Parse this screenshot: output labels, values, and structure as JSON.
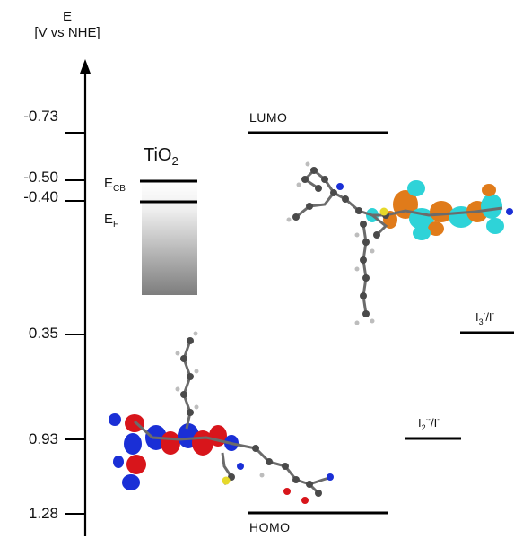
{
  "axis": {
    "title_line1": "E",
    "title_line2": "[V vs NHE]",
    "ticks": [
      {
        "label": "-0.73",
        "value": -0.73
      },
      {
        "label": "-0.50",
        "value": -0.5
      },
      {
        "label": "-0.40",
        "value": -0.4
      },
      {
        "label": "0.35",
        "value": 0.35
      },
      {
        "label": "0.93",
        "value": 0.93
      },
      {
        "label": "1.28",
        "value": 1.28
      }
    ]
  },
  "tio2": {
    "label_main": "TiO",
    "label_sub": "2",
    "ecb_main": "E",
    "ecb_sub": "CB",
    "ef_main": "E",
    "ef_sub": "F",
    "ecb_value": -0.5,
    "ef_value": -0.4
  },
  "lumo": {
    "label": "LUMO",
    "value": -0.73
  },
  "homo": {
    "label": "HOMO",
    "value": 1.28
  },
  "redox1": {
    "main": "I",
    "sub": "3",
    "sup": "-",
    "slash": "/I",
    "sup2": "-",
    "value": 0.35
  },
  "redox2": {
    "main": "I",
    "sub": "2",
    "sup": "·-",
    "slash": "/I",
    "sup2": "-",
    "value": 0.93
  },
  "colors": {
    "orbital_orange": "#e07b1a",
    "orbital_cyan": "#2ed3d8",
    "orbital_red": "#d8151b",
    "orbital_blue": "#1a2fd6",
    "atom_gray": "#555555",
    "sulfur_yellow": "#e6d92a"
  }
}
